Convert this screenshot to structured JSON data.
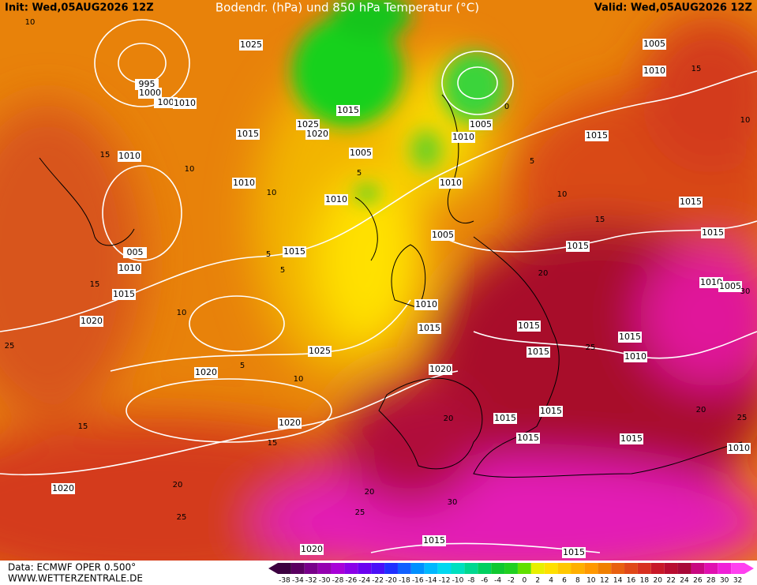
{
  "header": {
    "init": "Init: Wed,05AUG2026 12Z",
    "title": "Bodendr. (hPa) und 850 hPa Temperatur (°C)",
    "valid": "Valid: Wed,05AUG2026 12Z"
  },
  "footer": {
    "source": "Data: ECMWF OPER 0.500°",
    "website": "WWW.WETTERZENTRALE.DE"
  },
  "colorbar": {
    "labels": [
      "-38",
      "-34",
      "-32",
      "-30",
      "-28",
      "-26",
      "-24",
      "-22",
      "-20",
      "-18",
      "-16",
      "-14",
      "-12",
      "-10",
      "-8",
      "-6",
      "-4",
      "-2",
      "0",
      "2",
      "4",
      "6",
      "8",
      "10",
      "12",
      "14",
      "16",
      "18",
      "20",
      "22",
      "24",
      "26",
      "28",
      "30",
      "32"
    ]
  },
  "isobar_labels": [
    "1025",
    "995",
    "1000",
    "100",
    "1010",
    "1015",
    "1010",
    "1010",
    "1025",
    "1020",
    "1015",
    "1005",
    "1010",
    "1015",
    "005",
    "1010",
    "1015",
    "1020",
    "1025",
    "1020",
    "1020",
    "1020",
    "1020",
    "1015",
    "1015",
    "1005",
    "1010",
    "1015",
    "1005",
    "1010",
    "1010",
    "1005",
    "1015",
    "1015",
    "1015",
    "1010",
    "1005",
    "1010",
    "1015",
    "1015",
    "1015",
    "1015",
    "1010",
    "1020",
    "1015",
    "1015",
    "1015",
    "1015",
    "1010"
  ],
  "isotherm_labels": [
    "10",
    "15",
    "10",
    "10",
    "5",
    "5",
    "5",
    "10",
    "5",
    "10",
    "15",
    "15",
    "20",
    "25",
    "20",
    "25",
    "30",
    "15",
    "10",
    "15",
    "20",
    "25",
    "20",
    "25",
    "5",
    "0",
    "25",
    "15",
    "20",
    "30",
    "10"
  ]
}
